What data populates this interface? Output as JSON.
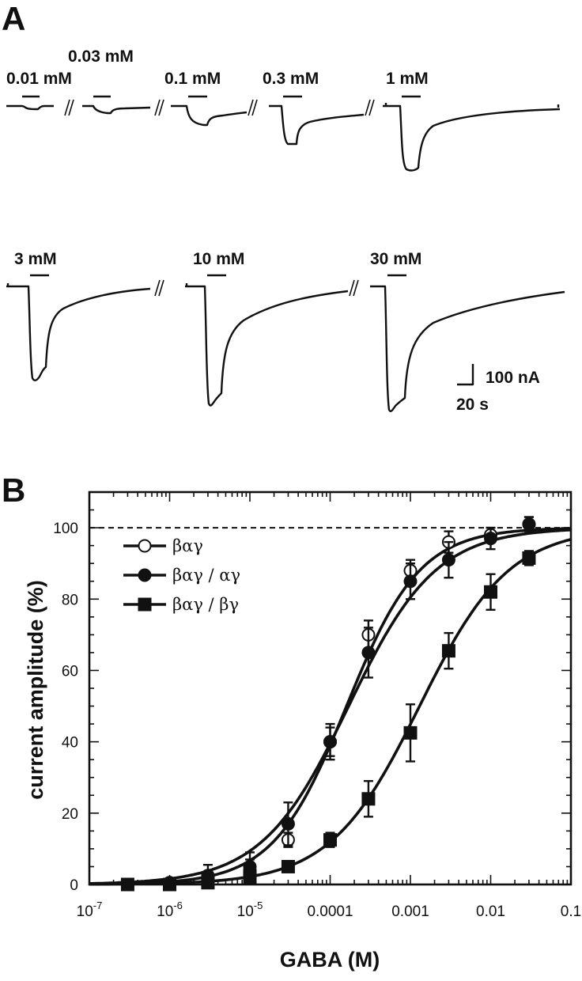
{
  "panel_a": {
    "letter": "A",
    "traces": [
      {
        "label": "0.01 mM",
        "peak_nA": 7
      },
      {
        "label": "0.03 mM",
        "peak_nA": 15
      },
      {
        "label": "0.1 mM",
        "peak_nA": 53
      },
      {
        "label": "0.3 mM",
        "peak_nA": 98
      },
      {
        "label": "1 mM",
        "peak_nA": 173
      },
      {
        "label": "3 mM",
        "peak_nA": 240
      },
      {
        "label": "10 mM",
        "peak_nA": 297
      },
      {
        "label": "30 mM",
        "peak_nA": 327
      }
    ],
    "scale_bar": {
      "current_label": "100 nA",
      "time_label": "20 s"
    }
  },
  "panel_b": {
    "letter": "B"
  },
  "chart_data": {
    "type": "scatter",
    "xlabel": "GABA (M)",
    "ylabel": "current amplitude (%)",
    "xscale": "log",
    "xlim": [
      1e-07,
      0.1
    ],
    "ylim": [
      0,
      110
    ],
    "xtick_labels": [
      "10-7",
      "10-6",
      "10-5",
      "0.0001",
      "0.001",
      "0.01",
      "0.1"
    ],
    "ytick_labels": [
      "0",
      "20",
      "40",
      "60",
      "80",
      "100"
    ],
    "reference_line": {
      "y": 100,
      "style": "dashed"
    },
    "legend_position": "upper-left",
    "series": [
      {
        "name": "βαγ",
        "marker": "open-circle",
        "x": [
          3e-07,
          1e-06,
          3e-06,
          1e-05,
          3e-05,
          0.0001,
          0.0003,
          0.001,
          0.003,
          0.01,
          0.03
        ],
        "y": [
          0,
          0.5,
          1.5,
          4,
          12.5,
          40,
          70,
          88,
          96,
          98,
          101
        ],
        "err": [
          1,
          1,
          2,
          3,
          2,
          4,
          4,
          3,
          3,
          2,
          2
        ],
        "fit": {
          "ec50": 0.00016,
          "hill": 0.95
        }
      },
      {
        "name": "βαγ / αγ",
        "marker": "filled-circle",
        "x": [
          3e-07,
          1e-06,
          3e-06,
          1e-05,
          3e-05,
          0.0001,
          0.0003,
          0.001,
          0.003,
          0.01,
          0.03
        ],
        "y": [
          0,
          0.5,
          2.5,
          5,
          17,
          40,
          65,
          85,
          91,
          97,
          101
        ],
        "err": [
          1,
          1,
          3,
          4,
          6,
          5,
          7,
          5,
          5,
          3,
          2
        ],
        "fit": {
          "ec50": 0.00017,
          "hill": 0.8
        }
      },
      {
        "name": "βαγ / βγ",
        "marker": "filled-square",
        "x": [
          3e-07,
          1e-06,
          3e-06,
          1e-05,
          3e-05,
          0.0001,
          0.0003,
          0.001,
          0.003,
          0.01,
          0.03
        ],
        "y": [
          0,
          0,
          0.5,
          2,
          5,
          12.5,
          24,
          42.5,
          65.5,
          82,
          91.5
        ],
        "err": [
          0.5,
          0.5,
          1,
          1,
          1,
          2,
          5,
          8,
          5,
          5,
          2
        ],
        "fit": {
          "ec50": 0.0013,
          "hill": 0.78
        }
      }
    ]
  }
}
